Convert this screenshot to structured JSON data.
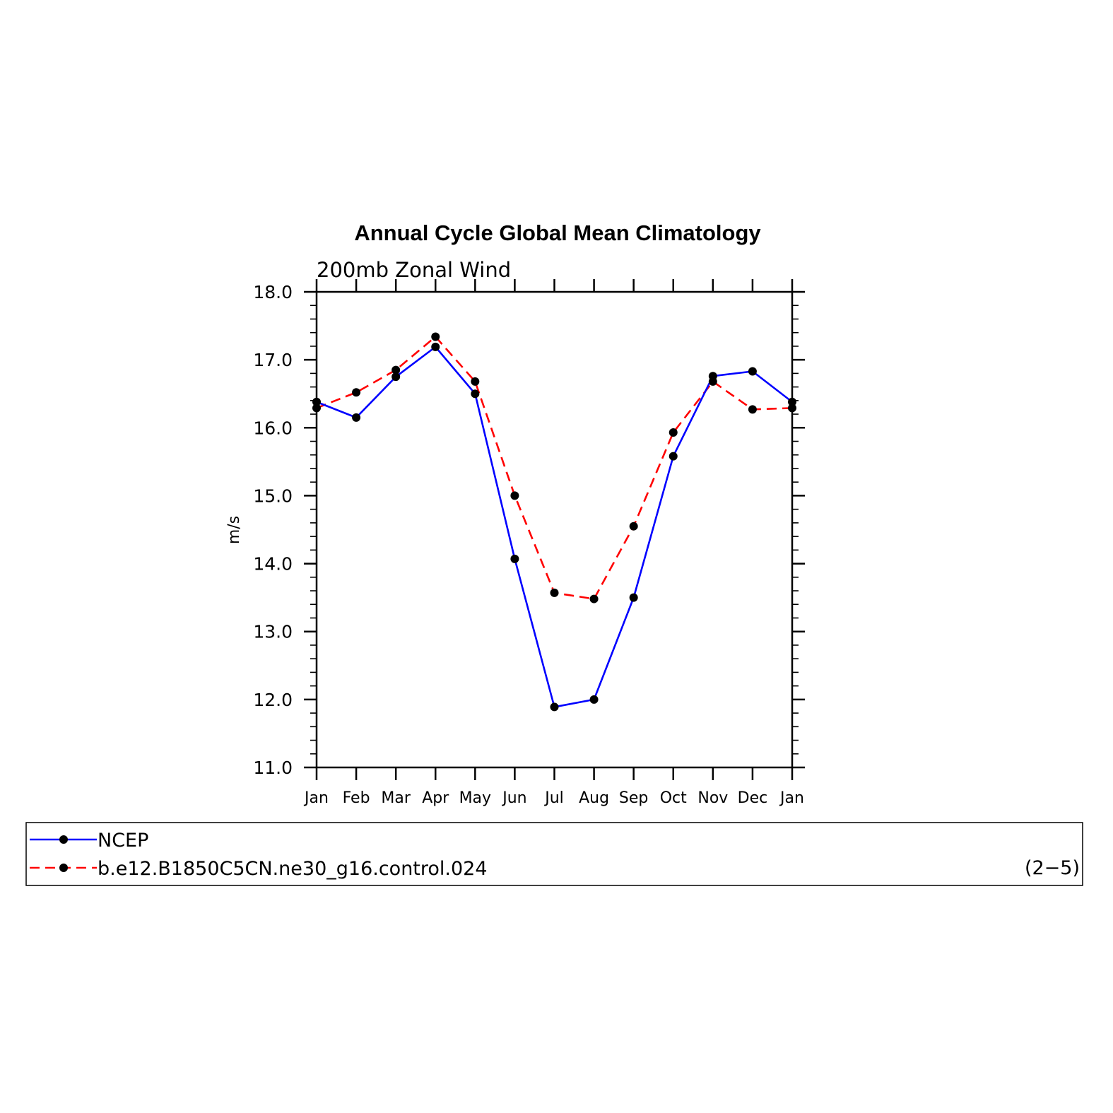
{
  "chart_data": {
    "type": "line",
    "title": "Annual Cycle Global Mean Climatology",
    "subtitle": "200mb Zonal Wind",
    "ylabel": "m/s",
    "xlabel": "",
    "categories": [
      "Jan",
      "Feb",
      "Mar",
      "Apr",
      "May",
      "Jun",
      "Jul",
      "Aug",
      "Sep",
      "Oct",
      "Nov",
      "Dec",
      "Jan"
    ],
    "ylim": [
      11.0,
      18.0
    ],
    "yticks": [
      "11.0",
      "12.0",
      "13.0",
      "14.0",
      "15.0",
      "16.0",
      "17.0",
      "18.0"
    ],
    "grid": false,
    "legend_position": "bottom",
    "series": [
      {
        "name": "NCEP",
        "color": "#0000ff",
        "dash": "solid",
        "values": [
          16.38,
          16.15,
          16.75,
          17.19,
          16.5,
          14.07,
          11.89,
          12.0,
          13.5,
          15.58,
          16.76,
          16.83,
          16.38
        ]
      },
      {
        "name": "b.e12.B1850C5CN.ne30_g16.control.024",
        "color": "#ff0000",
        "dash": "dashed",
        "values": [
          16.29,
          16.52,
          16.85,
          17.34,
          16.68,
          15.0,
          13.57,
          13.48,
          14.55,
          15.93,
          16.68,
          16.27,
          16.29
        ]
      }
    ],
    "annotation": "(2−5)"
  }
}
